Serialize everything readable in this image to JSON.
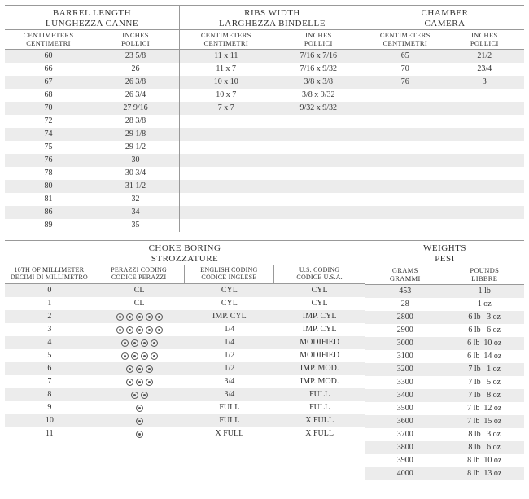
{
  "top": {
    "barrel": {
      "title1": "BARREL LENGTH",
      "title2": "LUNGHEZZA CANNE",
      "sub1a": "CENTIMETERS",
      "sub1b": "CENTIMETRI",
      "sub2a": "INCHES",
      "sub2b": "POLLICI",
      "rows": [
        {
          "cm": "60",
          "in": "23 5/8"
        },
        {
          "cm": "66",
          "in": "26"
        },
        {
          "cm": "67",
          "in": "26 3/8"
        },
        {
          "cm": "68",
          "in": "26 3/4"
        },
        {
          "cm": "70",
          "in": "27 9/16"
        },
        {
          "cm": "72",
          "in": "28 3/8"
        },
        {
          "cm": "74",
          "in": "29 1/8"
        },
        {
          "cm": "75",
          "in": "29 1/2"
        },
        {
          "cm": "76",
          "in": "30"
        },
        {
          "cm": "78",
          "in": "30 3/4"
        },
        {
          "cm": "80",
          "in": "31 1/2"
        },
        {
          "cm": "81",
          "in": "32"
        },
        {
          "cm": "86",
          "in": "34"
        },
        {
          "cm": "89",
          "in": "35"
        }
      ]
    },
    "ribs": {
      "title1": "RIBS WIDTH",
      "title2": "LARGHEZZA BINDELLE",
      "sub1a": "CENTIMETERS",
      "sub1b": "CENTIMETRI",
      "sub2a": "INCHES",
      "sub2b": "POLLICI",
      "rows": [
        {
          "cm": "11 x 11",
          "in": "7/16 x 7/16"
        },
        {
          "cm": "11 x 7",
          "in": "7/16 x 9/32"
        },
        {
          "cm": "10 x 10",
          "in": "3/8 x 3/8"
        },
        {
          "cm": "10 x 7",
          "in": "3/8 x 9/32"
        },
        {
          "cm": "7 x 7",
          "in": "9/32 x 9/32"
        },
        {
          "cm": "",
          "in": ""
        },
        {
          "cm": "",
          "in": ""
        },
        {
          "cm": "",
          "in": ""
        },
        {
          "cm": "",
          "in": ""
        },
        {
          "cm": "",
          "in": ""
        },
        {
          "cm": "",
          "in": ""
        },
        {
          "cm": "",
          "in": ""
        },
        {
          "cm": "",
          "in": ""
        },
        {
          "cm": "",
          "in": ""
        }
      ]
    },
    "chamber": {
      "title1": "CHAMBER",
      "title2": "CAMERA",
      "sub1a": "CENTIMETERS",
      "sub1b": "CENTIMETRI",
      "sub2a": "INCHES",
      "sub2b": "POLLICI",
      "rows": [
        {
          "cm": "65",
          "in": "21/2"
        },
        {
          "cm": "70",
          "in": "23/4"
        },
        {
          "cm": "76",
          "in": "3"
        },
        {
          "cm": "",
          "in": ""
        },
        {
          "cm": "",
          "in": ""
        },
        {
          "cm": "",
          "in": ""
        },
        {
          "cm": "",
          "in": ""
        },
        {
          "cm": "",
          "in": ""
        },
        {
          "cm": "",
          "in": ""
        },
        {
          "cm": "",
          "in": ""
        },
        {
          "cm": "",
          "in": ""
        },
        {
          "cm": "",
          "in": ""
        },
        {
          "cm": "",
          "in": ""
        },
        {
          "cm": "",
          "in": ""
        }
      ]
    }
  },
  "choke": {
    "title1": "CHOKE BORING",
    "title2": "STROZZATURE",
    "cols": [
      {
        "a": "10TH OF MILLIMETER",
        "b": "DECIMI DI MILLIMETRO"
      },
      {
        "a": "PERAZZI CODING",
        "b": "CODICE PERAZZI"
      },
      {
        "a": "ENGLISH CODING",
        "b": "CODICE INGLESE"
      },
      {
        "a": "U.S. CODING",
        "b": "CODICE U.S.A."
      }
    ],
    "rows": [
      {
        "mm": "0",
        "pz": {
          "t": "text",
          "v": "CL"
        },
        "en": "CYL",
        "us": "CYL"
      },
      {
        "mm": "1",
        "pz": {
          "t": "text",
          "v": "CL"
        },
        "en": "CYL",
        "us": "CYL"
      },
      {
        "mm": "2",
        "pz": {
          "t": "dots",
          "v": 5
        },
        "en": "IMP. CYL",
        "us": "IMP. CYL"
      },
      {
        "mm": "3",
        "pz": {
          "t": "dots",
          "v": 5
        },
        "en": "1/4",
        "us": "IMP. CYL"
      },
      {
        "mm": "4",
        "pz": {
          "t": "dots",
          "v": 4
        },
        "en": "1/4",
        "us": "MODIFIED"
      },
      {
        "mm": "5",
        "pz": {
          "t": "dots",
          "v": 4
        },
        "en": "1/2",
        "us": "MODIFIED"
      },
      {
        "mm": "6",
        "pz": {
          "t": "dots",
          "v": 3
        },
        "en": "1/2",
        "us": "IMP. MOD."
      },
      {
        "mm": "7",
        "pz": {
          "t": "dots",
          "v": 3
        },
        "en": "3/4",
        "us": "IMP. MOD."
      },
      {
        "mm": "8",
        "pz": {
          "t": "dots",
          "v": 2
        },
        "en": "3/4",
        "us": "FULL"
      },
      {
        "mm": "9",
        "pz": {
          "t": "dots",
          "v": 1
        },
        "en": "FULL",
        "us": "FULL"
      },
      {
        "mm": "10",
        "pz": {
          "t": "dots",
          "v": 1
        },
        "en": "FULL",
        "us": "X FULL"
      },
      {
        "mm": "11",
        "pz": {
          "t": "dots",
          "v": 1
        },
        "en": "X FULL",
        "us": "X FULL"
      }
    ]
  },
  "weights": {
    "title1": "WEIGHTS",
    "title2": "PESI",
    "sub1a": "GRAMS",
    "sub1b": "GRAMMI",
    "sub2a": "POUNDS",
    "sub2b": "LIBBRE",
    "rows": [
      {
        "g": "453",
        "lb": "1 lb"
      },
      {
        "g": "28",
        "lb": "1 oz"
      },
      {
        "g": "2800",
        "lb": "6 lb   3 oz"
      },
      {
        "g": "2900",
        "lb": "6 lb   6 oz"
      },
      {
        "g": "3000",
        "lb": "6 lb  10 oz"
      },
      {
        "g": "3100",
        "lb": "6 lb  14 oz"
      },
      {
        "g": "3200",
        "lb": "7 lb   1 oz"
      },
      {
        "g": "3300",
        "lb": "7 lb   5 oz"
      },
      {
        "g": "3400",
        "lb": "7 lb   8 oz"
      },
      {
        "g": "3500",
        "lb": "7 lb  12 oz"
      },
      {
        "g": "3600",
        "lb": "7 lb  15 oz"
      },
      {
        "g": "3700",
        "lb": "8 lb   3 oz"
      },
      {
        "g": "3800",
        "lb": "8 lb   6 oz"
      },
      {
        "g": "3900",
        "lb": "8 lb  10 oz"
      },
      {
        "g": "4000",
        "lb": "8 lb  13 oz"
      }
    ]
  }
}
